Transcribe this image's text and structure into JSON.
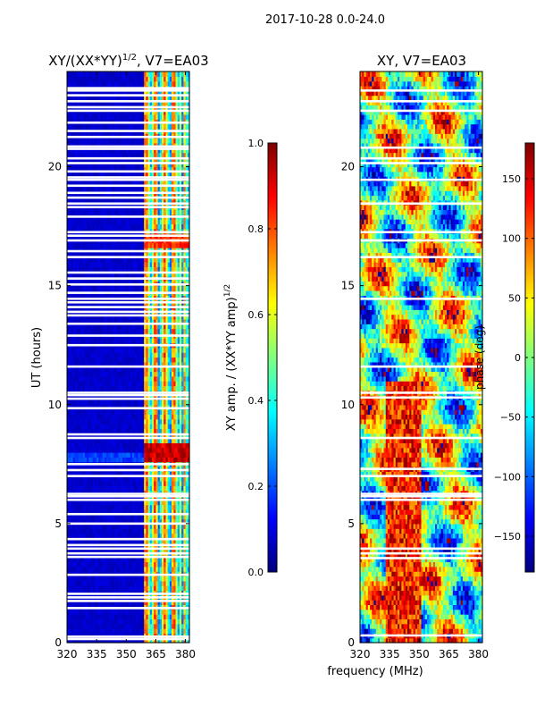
{
  "figure": {
    "suptitle": "2017-10-28 0.0-24.0",
    "shared_xlabel": "frequency (MHz)"
  },
  "colors": {
    "jet_dark_blue": "#00007f",
    "jet_blue": "#0000ff",
    "jet_cyan": "#00ffff",
    "jet_yellow": "#ffff00",
    "jet_red": "#ff0000",
    "jet_dark_red": "#7f0000",
    "flag_gap": "#ffffff",
    "axis": "#000000"
  },
  "chart_data": [
    {
      "type": "heatmap",
      "id": "amp",
      "title": "XY/(XX*YY)^{1/2}, V7=EA03",
      "title_plain": "XY/(XX*YY)",
      "title_sup": "1/2",
      "title_tail": ", V7=EA03",
      "xlabel": "",
      "ylabel": "UT (hours)",
      "xlim": [
        320,
        382
      ],
      "ylim": [
        0,
        24
      ],
      "xticks": [
        320,
        335,
        350,
        365,
        380
      ],
      "yticks": [
        0,
        5,
        10,
        15,
        20
      ],
      "colormap": "jet",
      "description_of_values": "mostly near 0.05 below ~359 MHz; 0.3-0.9 structure from 360-382 MHz; strong 0.8-1.0 at ~7.8-8.3 h",
      "colorbar": {
        "label": "XY amp. / (XX*YY amp)^{1/2}",
        "label_plain": "XY amp. / (XX*YY amp)",
        "label_sup": "1/2",
        "range": [
          0.0,
          1.0
        ],
        "ticks": [
          0.0,
          0.2,
          0.4,
          0.6,
          0.8,
          1.0
        ],
        "tick_labels": [
          "0.0",
          "0.2",
          "0.4",
          "0.6",
          "0.8",
          "1.0"
        ]
      },
      "flagged_hours": [
        0.15,
        0.25,
        1.45,
        1.75,
        1.9,
        2.05,
        2.85,
        3.6,
        3.75,
        3.95,
        4.1,
        4.35,
        5.0,
        5.4,
        6.0,
        6.15,
        6.25,
        7.0,
        7.25,
        7.5,
        8.6,
        8.75,
        9.85,
        10.25,
        10.4,
        10.5,
        11.6,
        12.5,
        12.9,
        13.4,
        13.75,
        13.9,
        14.1,
        14.3,
        14.45,
        14.7,
        15.05,
        15.3,
        15.55,
        16.2,
        16.45,
        16.9,
        17.1,
        17.25,
        17.9,
        18.3,
        18.45,
        18.7,
        18.9,
        19.2,
        19.45,
        19.55,
        19.8,
        20.15,
        20.35,
        20.75,
        20.85,
        21.25,
        21.5,
        21.85,
        22.35,
        22.5,
        22.75,
        23.0,
        23.2,
        23.3
      ]
    },
    {
      "type": "heatmap",
      "id": "phase",
      "title": "XY, V7=EA03",
      "xlabel": "frequency (MHz)",
      "ylabel": "",
      "xlim": [
        320,
        382
      ],
      "ylim": [
        0,
        24
      ],
      "xticks": [
        320,
        335,
        350,
        365,
        380
      ],
      "yticks": [
        0,
        5,
        10,
        15,
        20
      ],
      "colormap": "jet",
      "description_of_values": "wrapped phase -180 to 180 deg with band-like structure drifting in frequency and time",
      "colorbar": {
        "label": "phase (deg)",
        "range": [
          -180,
          180
        ],
        "ticks": [
          -150,
          -100,
          -50,
          0,
          50,
          100,
          150
        ],
        "tick_labels": [
          "−150",
          "−100",
          "−50",
          "0",
          "50",
          "100",
          "150"
        ]
      },
      "flagged_hours": [
        0.3,
        3.55,
        3.75,
        3.95,
        6.0,
        6.15,
        6.25,
        7.0,
        7.3,
        8.6,
        10.3,
        10.5,
        11.6,
        14.45,
        16.2,
        16.9,
        17.25,
        18.45,
        19.45,
        20.15,
        20.35,
        20.8,
        22.35,
        22.75,
        23.2
      ]
    }
  ]
}
